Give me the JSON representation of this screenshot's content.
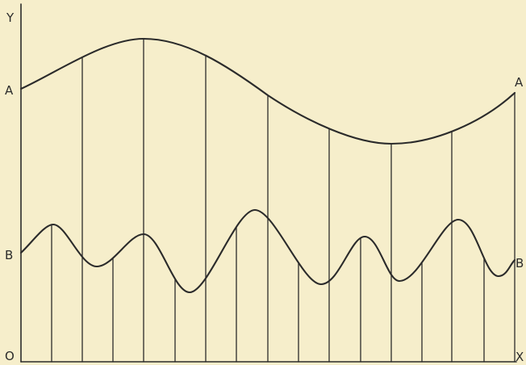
{
  "axes": {
    "y_label": "Y",
    "x_label": "X",
    "origin_label": "O"
  },
  "curves": {
    "a_left_label": "A",
    "a_right_label": "A",
    "b_left_label": "B",
    "b_right_label": "B"
  },
  "colors": {
    "background": "#f6eecb",
    "ink": "#2b2b2b"
  }
}
